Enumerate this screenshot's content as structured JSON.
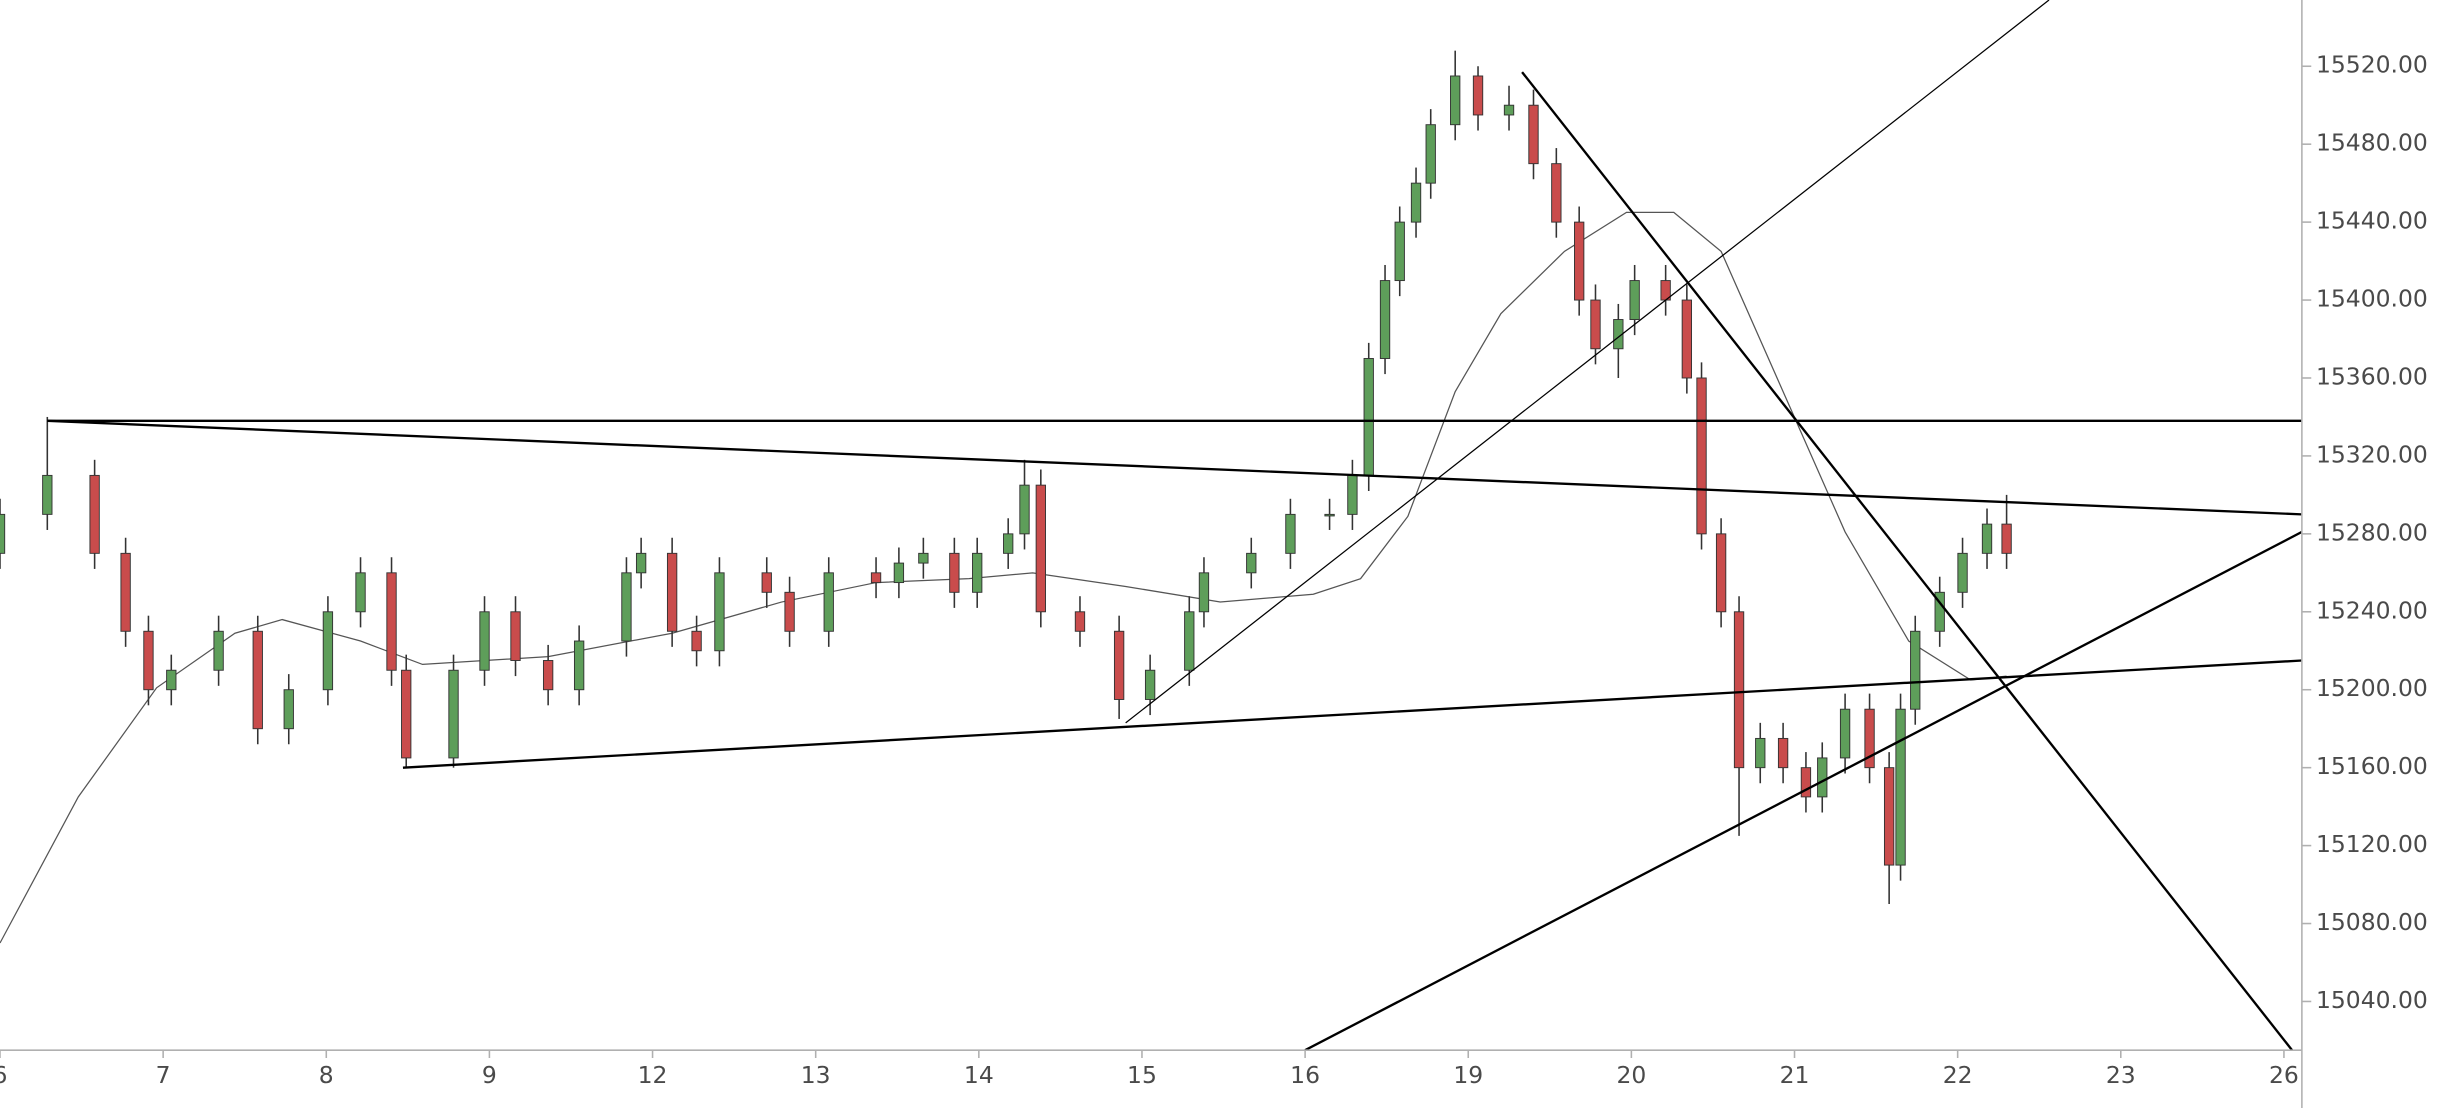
{
  "chart_data": {
    "type": "candlestick",
    "x": [
      0,
      0.29,
      0.58,
      0.77,
      0.91,
      1.05,
      1.34,
      1.58,
      1.77,
      2.01,
      2.21,
      2.4,
      2.49,
      2.78,
      2.97,
      3.16,
      3.36,
      3.55,
      3.84,
      3.93,
      4.12,
      4.27,
      4.41,
      4.7,
      4.84,
      5.08,
      5.37,
      5.51,
      5.66,
      5.85,
      5.99,
      6.18,
      6.28,
      6.38,
      6.62,
      6.86,
      7.05,
      7.29,
      7.38,
      7.67,
      7.91,
      8.15,
      8.29,
      8.39,
      8.49,
      8.58,
      8.68,
      8.77,
      8.92,
      9.06,
      9.25,
      9.4,
      9.54,
      9.68,
      9.78,
      9.92,
      10.02,
      10.21,
      10.34,
      10.43,
      10.55,
      10.66,
      10.79,
      10.93,
      11.07,
      11.17,
      11.31,
      11.46,
      11.58,
      11.65,
      11.74,
      11.89,
      12.03,
      12.18,
      12.3
    ],
    "open": [
      15270,
      15290,
      15310,
      15270,
      15230,
      15200,
      15210,
      15230,
      15180,
      15200,
      15240,
      15260,
      15210,
      15165,
      15210,
      15240,
      15215,
      15200,
      15225,
      15260,
      15270,
      15230,
      15220,
      15260,
      15250,
      15230,
      15260,
      15255,
      15265,
      15270,
      15250,
      15270,
      15280,
      15305,
      15240,
      15230,
      15195,
      15210,
      15240,
      15260,
      15270,
      15290,
      15290,
      15310,
      15370,
      15410,
      15440,
      15460,
      15490,
      15515,
      15495,
      15500,
      15470,
      15440,
      15400,
      15375,
      15390,
      15410,
      15400,
      15360,
      15280,
      15240,
      15160,
      15175,
      15160,
      15145,
      15165,
      15190,
      15160,
      15110,
      15190,
      15230,
      15250,
      15270,
      15285
    ],
    "high": [
      15298,
      15340,
      15318,
      15278,
      15238,
      15218,
      15238,
      15238,
      15208,
      15248,
      15268,
      15268,
      15218,
      15218,
      15248,
      15248,
      15223,
      15233,
      15268,
      15278,
      15278,
      15238,
      15268,
      15268,
      15258,
      15268,
      15268,
      15273,
      15278,
      15278,
      15278,
      15288,
      15318,
      15313,
      15248,
      15238,
      15218,
      15248,
      15268,
      15278,
      15298,
      15298,
      15318,
      15378,
      15418,
      15448,
      15468,
      15498,
      15528,
      15520,
      15510,
      15508,
      15478,
      15448,
      15408,
      15398,
      15418,
      15418,
      15408,
      15368,
      15288,
      15248,
      15183,
      15183,
      15168,
      15173,
      15198,
      15198,
      15168,
      15198,
      15238,
      15258,
      15278,
      15293,
      15300
    ],
    "low": [
      15262,
      15282,
      15262,
      15222,
      15192,
      15192,
      15202,
      15172,
      15172,
      15192,
      15232,
      15202,
      15160,
      15160,
      15202,
      15207,
      15192,
      15192,
      15217,
      15252,
      15222,
      15212,
      15212,
      15242,
      15222,
      15222,
      15247,
      15247,
      15257,
      15242,
      15242,
      15262,
      15272,
      15232,
      15222,
      15185,
      15187,
      15202,
      15232,
      15252,
      15262,
      15282,
      15282,
      15302,
      15362,
      15402,
      15432,
      15452,
      15482,
      15487,
      15487,
      15462,
      15432,
      15392,
      15367,
      15360,
      15382,
      15392,
      15352,
      15272,
      15232,
      15125,
      15152,
      15152,
      15137,
      15137,
      15157,
      15152,
      15090,
      15102,
      15182,
      15222,
      15242,
      15262,
      15262
    ],
    "close": [
      15290,
      15310,
      15270,
      15230,
      15200,
      15210,
      15230,
      15180,
      15200,
      15240,
      15260,
      15210,
      15165,
      15210,
      15240,
      15215,
      15200,
      15225,
      15260,
      15270,
      15230,
      15220,
      15260,
      15250,
      15230,
      15260,
      15255,
      15265,
      15270,
      15250,
      15270,
      15280,
      15305,
      15240,
      15230,
      15195,
      15210,
      15240,
      15260,
      15270,
      15290,
      15290,
      15310,
      15370,
      15410,
      15440,
      15460,
      15490,
      15515,
      15495,
      15500,
      15470,
      15440,
      15400,
      15375,
      15390,
      15410,
      15400,
      15360,
      15280,
      15240,
      15160,
      15175,
      15160,
      15145,
      15165,
      15190,
      15160,
      15110,
      15190,
      15230,
      15250,
      15270,
      15285,
      15270
    ],
    "up_color": "#5e9e5a",
    "down_color": "#c94c4c",
    "ma": {
      "color": "#555555",
      "x": [
        0,
        0.48,
        0.96,
        1.44,
        1.73,
        2.21,
        2.59,
        3.36,
        4.12,
        4.79,
        5.37,
        5.94,
        6.33,
        6.9,
        7.48,
        8.05,
        8.34,
        8.63,
        8.92,
        9.2,
        9.59,
        9.97,
        10.26,
        10.55,
        10.93,
        11.31,
        11.7,
        12.08,
        12.3
      ],
      "values": [
        15070,
        15145,
        15201,
        15229,
        15236,
        15225,
        15213,
        15217,
        15229,
        15245,
        15255,
        15257,
        15260,
        15253,
        15245,
        15249,
        15257,
        15289,
        15353,
        15393,
        15425,
        15445,
        15445,
        15425,
        15353,
        15281,
        15225,
        15205,
        15207
      ]
    },
    "trendlines": [
      {
        "x": [
          0.29,
          14.11
        ],
        "y": [
          15338,
          15338
        ],
        "width": 1.5
      },
      {
        "x": [
          0.29,
          14.11
        ],
        "y": [
          15338,
          15290
        ],
        "width": 1.5
      },
      {
        "x": [
          2.47,
          14.11
        ],
        "y": [
          15160,
          15215
        ],
        "width": 1.5
      },
      {
        "x": [
          6.9,
          12.56
        ],
        "y": [
          15183,
          15554
        ],
        "width": 0.8
      },
      {
        "x": [
          9.33,
          14.05
        ],
        "y": [
          15517,
          15015
        ],
        "width": 1.5
      },
      {
        "x": [
          8.0,
          14.11
        ],
        "y": [
          15015,
          15281
        ],
        "width": 1.5
      }
    ],
    "xlim": [
      0,
      14.11
    ],
    "ylim": [
      15015,
      15554
    ],
    "xticks": [
      {
        "value": 0,
        "label": "6"
      },
      {
        "value": 1,
        "label": "7"
      },
      {
        "value": 2,
        "label": "8"
      },
      {
        "value": 3,
        "label": "9"
      },
      {
        "value": 4,
        "label": "12"
      },
      {
        "value": 5,
        "label": "13"
      },
      {
        "value": 6,
        "label": "14"
      },
      {
        "value": 7,
        "label": "15"
      },
      {
        "value": 8,
        "label": "16"
      },
      {
        "value": 9,
        "label": "19"
      },
      {
        "value": 10,
        "label": "20"
      },
      {
        "value": 11,
        "label": "21"
      },
      {
        "value": 12,
        "label": "22"
      },
      {
        "value": 13,
        "label": "23"
      },
      {
        "value": 14,
        "label": "26"
      }
    ],
    "yticks": [
      {
        "value": 15040,
        "label": "15040.00"
      },
      {
        "value": 15080,
        "label": "15080.00"
      },
      {
        "value": 15120,
        "label": "15120.00"
      },
      {
        "value": 15160,
        "label": "15160.00"
      },
      {
        "value": 15200,
        "label": "15200.00"
      },
      {
        "value": 15240,
        "label": "15240.00"
      },
      {
        "value": 15280,
        "label": "15280.00"
      },
      {
        "value": 15320,
        "label": "15320.00"
      },
      {
        "value": 15360,
        "label": "15360.00"
      },
      {
        "value": 15400,
        "label": "15400.00"
      },
      {
        "value": 15440,
        "label": "15440.00"
      },
      {
        "value": 15480,
        "label": "15480.00"
      },
      {
        "value": 15520,
        "label": "15520.00"
      }
    ]
  }
}
